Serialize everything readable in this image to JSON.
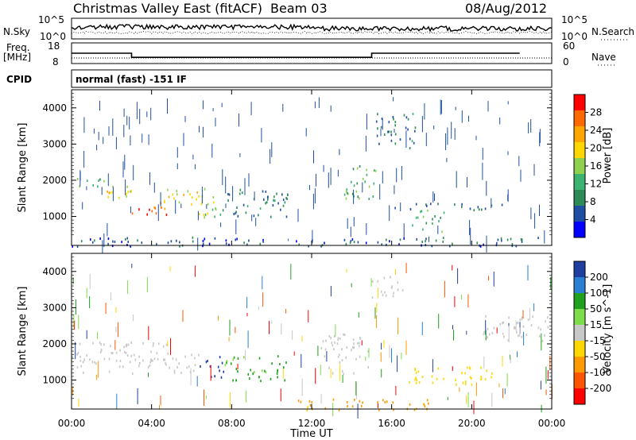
{
  "header": {
    "title": "Christmas Valley East (fitACF)",
    "beam": "Beam 03",
    "date": "08/Aug/2012"
  },
  "left_labels": {
    "nsky": "N.Sky",
    "freq_line1": "Freq.",
    "freq_line2": "[MHz]",
    "cpid": "CPID",
    "cpid_value": "normal (fast) -151 IF"
  },
  "right_labels": {
    "nsearch": "N.Search",
    "nave": "Nave"
  },
  "noise_panel": {
    "left_ticks": [
      "10^5",
      "10^0"
    ],
    "right_ticks": [
      "10^5",
      "10^0"
    ]
  },
  "freq_panel": {
    "left_ticks": [
      "18",
      "8"
    ],
    "right_ticks": [
      "60",
      "0"
    ]
  },
  "power_colorbar": {
    "label": "Power [dB]",
    "ticks": [
      "28",
      "24",
      "20",
      "16",
      "12",
      "8",
      "4"
    ],
    "colors": [
      "#ff0000",
      "#ff6a00",
      "#ffa500",
      "#ffd700",
      "#8fd14f",
      "#3cb371",
      "#2e8b57",
      "#1f4fa3",
      "#0000ff"
    ]
  },
  "velocity_colorbar": {
    "label": "Velocity [m s^-1]",
    "ticks": [
      "200",
      "100",
      "50",
      "15",
      "-15",
      "-50",
      "-100",
      "-200"
    ],
    "colors": [
      "#1f3fa0",
      "#2a7fd4",
      "#1fa01f",
      "#7ddc4a",
      "#c8c8c8",
      "#ffd700",
      "#ff9900",
      "#ff5500",
      "#ff0000"
    ]
  },
  "chart_data": {
    "type": "heatmap",
    "xlabel": "Time UT",
    "ylabel": "Slant Range [km]",
    "x_ticks": [
      "00:00",
      "04:00",
      "08:00",
      "12:00",
      "16:00",
      "20:00",
      "00:00"
    ],
    "y_ticks": [
      "1000",
      "2000",
      "3000",
      "4000"
    ],
    "xlim_hours": [
      0,
      24
    ],
    "ylim_km": [
      200,
      4500
    ],
    "frequency_steps": [
      {
        "start_hour": 0.0,
        "end_hour": 3.0,
        "freq_mhz": 13
      },
      {
        "start_hour": 3.0,
        "end_hour": 15.0,
        "freq_mhz": 11
      },
      {
        "start_hour": 15.0,
        "end_hour": 22.4,
        "freq_mhz": 13
      }
    ],
    "power_features": [
      {
        "t0": 0.0,
        "t1": 1.6,
        "r0": 1800,
        "r1": 2100,
        "power_db": 12
      },
      {
        "t0": 1.4,
        "t1": 3.0,
        "r0": 1500,
        "r1": 2000,
        "power_db": 18
      },
      {
        "t0": 3.0,
        "t1": 4.8,
        "r0": 1000,
        "r1": 1400,
        "power_db": 28
      },
      {
        "t0": 4.6,
        "t1": 6.6,
        "r0": 1300,
        "r1": 1800,
        "power_db": 18
      },
      {
        "t0": 6.2,
        "t1": 7.4,
        "r0": 1000,
        "r1": 1800,
        "power_db": 16
      },
      {
        "t0": 7.4,
        "t1": 10.8,
        "r0": 1000,
        "r1": 1800,
        "power_db": 6
      },
      {
        "t0": 13.6,
        "t1": 15.2,
        "r0": 1500,
        "r1": 2500,
        "power_db": 12
      },
      {
        "t0": 15.2,
        "t1": 17.2,
        "r0": 2900,
        "r1": 3900,
        "power_db": 6
      },
      {
        "t0": 16.0,
        "t1": 21.5,
        "r0": 1200,
        "r1": 1400,
        "power_db": 6
      },
      {
        "t0": 17.0,
        "t1": 18.6,
        "r0": 600,
        "r1": 1200,
        "power_db": 10
      },
      {
        "t0": 0.0,
        "t1": 24.0,
        "r0": 200,
        "r1": 450,
        "power_db": 4
      }
    ],
    "velocity_features": [
      {
        "t0": 0.0,
        "t1": 5.0,
        "r0": 1200,
        "r1": 2100,
        "velocity": 0
      },
      {
        "t0": 5.0,
        "t1": 6.4,
        "r0": 1200,
        "r1": 1900,
        "velocity": 0
      },
      {
        "t0": 6.4,
        "t1": 7.6,
        "r0": 1100,
        "r1": 1700,
        "velocity": 200
      },
      {
        "t0": 7.6,
        "t1": 10.8,
        "r0": 1000,
        "r1": 1700,
        "velocity": 40
      },
      {
        "t0": 12.4,
        "t1": 14.8,
        "r0": 1200,
        "r1": 2300,
        "velocity": 0
      },
      {
        "t0": 15.0,
        "t1": 16.6,
        "r0": 3300,
        "r1": 3900,
        "velocity": 0
      },
      {
        "t0": 16.6,
        "t1": 21.0,
        "r0": 900,
        "r1": 1400,
        "velocity": -30
      },
      {
        "t0": 11.0,
        "t1": 18.0,
        "r0": 200,
        "r1": 500,
        "velocity": -60
      },
      {
        "t0": 20.5,
        "t1": 24.0,
        "r0": 2100,
        "r1": 2800,
        "velocity": 0
      }
    ]
  }
}
